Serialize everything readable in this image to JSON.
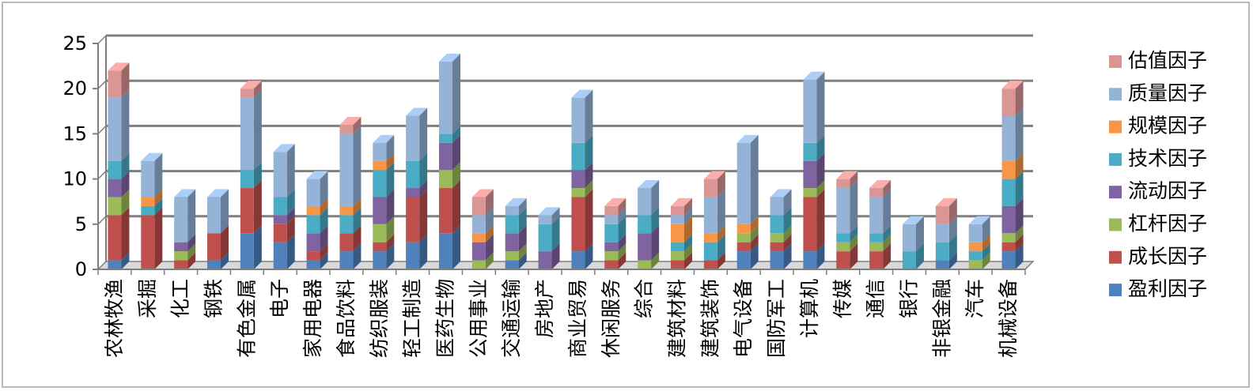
{
  "chart_data": {
    "type": "bar",
    "stacked": true,
    "three_d": true,
    "ylim": [
      0,
      25
    ],
    "yticks": [
      0,
      5,
      10,
      15,
      20,
      25
    ],
    "grid": true,
    "legend_position": "right",
    "categories": [
      "农林牧渔",
      "采掘",
      "化工",
      "钢铁",
      "有色金属",
      "电子",
      "家用电器",
      "食品饮料",
      "纺织服装",
      "轻工制造",
      "医药生物",
      "公用事业",
      "交通运输",
      "房地产",
      "商业贸易",
      "休闲服务",
      "综合",
      "建筑材料",
      "建筑装饰",
      "电气设备",
      "国防军工",
      "计算机",
      "传媒",
      "通信",
      "银行",
      "非银金融",
      "汽车",
      "机械设备"
    ],
    "series": [
      {
        "name": "盈利因子",
        "color": "#4f81bd",
        "values": [
          1,
          0,
          0,
          1,
          4,
          3,
          1,
          2,
          2,
          3,
          4,
          0,
          1,
          0,
          2,
          0,
          0,
          0,
          0,
          2,
          2,
          2,
          0,
          0,
          0,
          1,
          0,
          2
        ]
      },
      {
        "name": "成长因子",
        "color": "#c0504d",
        "values": [
          5,
          6,
          1,
          3,
          5,
          2,
          1,
          2,
          1,
          5,
          5,
          0,
          0,
          0,
          6,
          1,
          0,
          1,
          1,
          1,
          1,
          6,
          2,
          2,
          0,
          0,
          0,
          1
        ]
      },
      {
        "name": "杠杆因子",
        "color": "#9bbb59",
        "values": [
          2,
          0,
          1,
          0,
          0,
          0,
          0,
          0,
          2,
          0,
          2,
          1,
          1,
          0,
          1,
          1,
          1,
          1,
          0,
          1,
          1,
          1,
          1,
          1,
          0,
          0,
          1,
          1
        ]
      },
      {
        "name": "流动因子",
        "color": "#8064a2",
        "values": [
          2,
          0,
          1,
          0,
          0,
          1,
          2,
          0,
          3,
          1,
          3,
          2,
          2,
          2,
          2,
          1,
          3,
          0,
          0,
          0,
          0,
          3,
          0,
          0,
          0,
          0,
          0,
          3
        ]
      },
      {
        "name": "技术因子",
        "color": "#4bacc6",
        "values": [
          2,
          1,
          0,
          0,
          2,
          2,
          2,
          2,
          3,
          3,
          1,
          0,
          2,
          3,
          3,
          2,
          2,
          1,
          2,
          0,
          2,
          2,
          1,
          1,
          2,
          2,
          1,
          3
        ]
      },
      {
        "name": "规模因子",
        "color": "#f79646",
        "values": [
          0,
          1,
          0,
          0,
          0,
          0,
          1,
          1,
          1,
          0,
          0,
          1,
          0,
          0,
          0,
          0,
          0,
          2,
          1,
          1,
          0,
          0,
          0,
          0,
          0,
          0,
          1,
          2
        ]
      },
      {
        "name": "质量因子",
        "color": "#95b3d7",
        "values": [
          7,
          4,
          5,
          4,
          8,
          5,
          3,
          8,
          2,
          5,
          8,
          2,
          1,
          1,
          5,
          1,
          3,
          1,
          4,
          9,
          2,
          7,
          5,
          4,
          3,
          2,
          2,
          5
        ]
      },
      {
        "name": "估值因子",
        "color": "#d99694",
        "values": [
          3,
          0,
          0,
          0,
          1,
          0,
          0,
          1,
          0,
          0,
          0,
          2,
          0,
          0,
          0,
          1,
          0,
          1,
          2,
          0,
          0,
          0,
          1,
          1,
          0,
          2,
          0,
          3
        ]
      }
    ]
  }
}
